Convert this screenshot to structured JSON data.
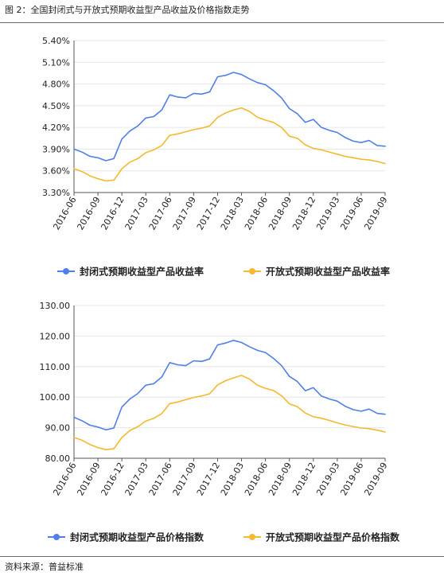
{
  "header": {
    "title": "图 2：全国封闭式与开放式预期收益型产品收益及价格指数走势"
  },
  "footer": {
    "source": "资料来源：普益标准"
  },
  "colors": {
    "series1": "#4f7fe8",
    "series2": "#f5b82e",
    "axis": "#555555",
    "grid": "#e6e6e6"
  },
  "chart_data": [
    {
      "type": "line",
      "title": "",
      "xlabel": "",
      "ylabel": "",
      "y_tick_labels": [
        "3.30%",
        "3.60%",
        "3.90%",
        "4.20%",
        "4.50%",
        "4.80%",
        "5.10%",
        "5.40%"
      ],
      "ylim": [
        3.3,
        5.4
      ],
      "x_tick_labels": [
        "2016-06",
        "2016-09",
        "2016-12",
        "2017-03",
        "2017-06",
        "2017-09",
        "2017-12",
        "2018-03",
        "2018-06",
        "2018-09",
        "2018-12",
        "2019-03",
        "2019-06",
        "2019-09"
      ],
      "legend_position": "bottom",
      "series": [
        {
          "name": "封闭式预期收益型产品收益率",
          "values": [
            3.9,
            3.86,
            3.8,
            3.78,
            3.74,
            3.77,
            4.04,
            4.15,
            4.22,
            4.33,
            4.35,
            4.44,
            4.65,
            4.62,
            4.61,
            4.67,
            4.66,
            4.69,
            4.9,
            4.92,
            4.96,
            4.93,
            4.87,
            4.82,
            4.79,
            4.71,
            4.61,
            4.46,
            4.39,
            4.27,
            4.31,
            4.2,
            4.16,
            4.13,
            4.06,
            4.01,
            3.99,
            4.02,
            3.95,
            3.94
          ]
        },
        {
          "name": "开放式预期收益型产品收益率",
          "values": [
            3.63,
            3.59,
            3.53,
            3.49,
            3.46,
            3.47,
            3.63,
            3.72,
            3.77,
            3.85,
            3.89,
            3.95,
            4.09,
            4.11,
            4.14,
            4.17,
            4.19,
            4.22,
            4.34,
            4.4,
            4.44,
            4.47,
            4.42,
            4.34,
            4.3,
            4.27,
            4.2,
            4.08,
            4.05,
            3.96,
            3.91,
            3.89,
            3.86,
            3.83,
            3.8,
            3.78,
            3.76,
            3.75,
            3.73,
            3.7
          ]
        }
      ]
    },
    {
      "type": "line",
      "title": "",
      "xlabel": "",
      "ylabel": "",
      "y_tick_labels": [
        "80.00",
        "90.00",
        "100.00",
        "110.00",
        "120.00",
        "130.00"
      ],
      "ylim": [
        80,
        130
      ],
      "x_tick_labels": [
        "2016-06",
        "2016-09",
        "2016-12",
        "2017-03",
        "2017-06",
        "2017-09",
        "2017-12",
        "2018-03",
        "2018-06",
        "2018-09",
        "2018-12",
        "2019-03",
        "2019-06",
        "2019-09"
      ],
      "legend_position": "bottom",
      "series": [
        {
          "name": "封闭式预期收益型产品价格指数",
          "values": [
            93.4,
            92.3,
            90.8,
            90.2,
            89.3,
            89.9,
            96.8,
            99.4,
            101.2,
            103.9,
            104.4,
            106.6,
            111.3,
            110.6,
            110.3,
            111.9,
            111.7,
            112.5,
            117.1,
            117.7,
            118.6,
            117.9,
            116.5,
            115.3,
            114.6,
            112.7,
            110.4,
            106.8,
            105.1,
            102.1,
            103.1,
            100.4,
            99.4,
            98.7,
            97.0,
            95.9,
            95.4,
            96.1,
            94.7,
            94.4
          ]
        },
        {
          "name": "开放式预期收益型产品价格指数",
          "values": [
            86.8,
            85.9,
            84.5,
            83.5,
            82.8,
            83.1,
            86.8,
            89.1,
            90.3,
            92.2,
            93.1,
            94.6,
            97.9,
            98.4,
            99.2,
            99.9,
            100.4,
            101.1,
            104.0,
            105.4,
            106.3,
            107.1,
            105.9,
            103.9,
            102.9,
            102.2,
            100.5,
            97.8,
            96.9,
            94.8,
            93.6,
            93.1,
            92.4,
            91.6,
            90.9,
            90.4,
            89.9,
            89.7,
            89.2,
            88.6
          ]
        }
      ]
    }
  ]
}
